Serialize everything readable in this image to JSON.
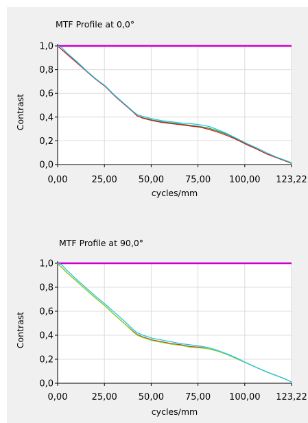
{
  "chart_data": [
    {
      "type": "line",
      "title": "MTF Profile at 0,0°",
      "xlabel": "cycles/mm",
      "ylabel": "Contrast",
      "xlim": [
        0,
        123.22
      ],
      "ylim": [
        0,
        1.0
      ],
      "x_ticks": [
        "0,00",
        "25,00",
        "50,00",
        "75,00",
        "100,00",
        "123,22"
      ],
      "y_ticks": [
        "0,0",
        "0,2",
        "0,4",
        "0,6",
        "0,8",
        "1,0"
      ],
      "grid": true,
      "legend": "none",
      "series": [
        {
          "color": "#cc00cc",
          "points": [
            [
              0,
              1.0
            ],
            [
              123.22,
              1.0
            ]
          ]
        },
        {
          "color": "#1a9a3a",
          "points": [
            [
              0,
              1.0
            ],
            [
              5,
              0.93
            ],
            [
              10,
              0.86
            ],
            [
              15,
              0.79
            ],
            [
              20,
              0.72
            ],
            [
              25,
              0.66
            ],
            [
              30,
              0.58
            ],
            [
              35,
              0.51
            ],
            [
              40,
              0.44
            ],
            [
              42,
              0.41
            ],
            [
              45,
              0.395
            ],
            [
              50,
              0.375
            ],
            [
              55,
              0.36
            ],
            [
              60,
              0.35
            ],
            [
              65,
              0.34
            ],
            [
              70,
              0.33
            ],
            [
              75,
              0.32
            ],
            [
              80,
              0.305
            ],
            [
              85,
              0.28
            ],
            [
              90,
              0.25
            ],
            [
              95,
              0.21
            ],
            [
              100,
              0.17
            ],
            [
              105,
              0.13
            ],
            [
              110,
              0.09
            ],
            [
              115,
              0.06
            ],
            [
              120,
              0.03
            ],
            [
              123.22,
              0.01
            ]
          ]
        },
        {
          "color": "#d81b1b",
          "points": [
            [
              0,
              1.0
            ],
            [
              5,
              0.93
            ],
            [
              10,
              0.86
            ],
            [
              15,
              0.79
            ],
            [
              20,
              0.72
            ],
            [
              25,
              0.66
            ],
            [
              30,
              0.58
            ],
            [
              35,
              0.51
            ],
            [
              40,
              0.44
            ],
            [
              42,
              0.41
            ],
            [
              45,
              0.39
            ],
            [
              50,
              0.37
            ],
            [
              55,
              0.355
            ],
            [
              60,
              0.345
            ],
            [
              65,
              0.335
            ],
            [
              70,
              0.325
            ],
            [
              75,
              0.315
            ],
            [
              80,
              0.295
            ],
            [
              85,
              0.27
            ],
            [
              90,
              0.24
            ],
            [
              95,
              0.205
            ],
            [
              100,
              0.165
            ],
            [
              105,
              0.13
            ],
            [
              110,
              0.09
            ],
            [
              115,
              0.06
            ],
            [
              120,
              0.03
            ],
            [
              123.22,
              0.01
            ]
          ]
        },
        {
          "color": "#1ec8e6",
          "points": [
            [
              0,
              1.0
            ],
            [
              2,
              0.99
            ],
            [
              5,
              0.94
            ],
            [
              10,
              0.87
            ],
            [
              15,
              0.795
            ],
            [
              20,
              0.725
            ],
            [
              25,
              0.665
            ],
            [
              30,
              0.585
            ],
            [
              35,
              0.515
            ],
            [
              40,
              0.445
            ],
            [
              42,
              0.42
            ],
            [
              45,
              0.405
            ],
            [
              50,
              0.385
            ],
            [
              55,
              0.37
            ],
            [
              60,
              0.36
            ],
            [
              65,
              0.35
            ],
            [
              70,
              0.345
            ],
            [
              75,
              0.335
            ],
            [
              80,
              0.32
            ],
            [
              85,
              0.29
            ],
            [
              90,
              0.255
            ],
            [
              95,
              0.215
            ],
            [
              100,
              0.175
            ],
            [
              105,
              0.14
            ],
            [
              110,
              0.1
            ],
            [
              115,
              0.065
            ],
            [
              120,
              0.035
            ],
            [
              123.22,
              0.015
            ]
          ]
        }
      ]
    },
    {
      "type": "line",
      "title": "MTF Profile at 90,0°",
      "xlabel": "cycles/mm",
      "ylabel": "Contrast",
      "xlim": [
        0,
        123.22
      ],
      "ylim": [
        0,
        1.0
      ],
      "x_ticks": [
        "0,00",
        "25,00",
        "50,00",
        "75,00",
        "100,00",
        "123,22"
      ],
      "y_ticks": [
        "0,0",
        "0,2",
        "0,4",
        "0,6",
        "0,8",
        "1,0"
      ],
      "grid": true,
      "legend": "none",
      "series": [
        {
          "color": "#cc00cc",
          "points": [
            [
              0,
              1.0
            ],
            [
              123.22,
              1.0
            ]
          ]
        },
        {
          "color": "#d81b1b",
          "points": [
            [
              0,
              1.0
            ],
            [
              5,
              0.92
            ],
            [
              10,
              0.85
            ],
            [
              15,
              0.78
            ],
            [
              20,
              0.71
            ],
            [
              25,
              0.645
            ],
            [
              30,
              0.57
            ],
            [
              35,
              0.5
            ],
            [
              40,
              0.43
            ],
            [
              42,
              0.405
            ],
            [
              45,
              0.385
            ],
            [
              50,
              0.36
            ],
            [
              55,
              0.345
            ],
            [
              60,
              0.33
            ],
            [
              65,
              0.32
            ],
            [
              70,
              0.305
            ],
            [
              75,
              0.3
            ],
            [
              80,
              0.285
            ],
            [
              85,
              0.265
            ],
            [
              90,
              0.235
            ],
            [
              95,
              0.2
            ],
            [
              100,
              0.165
            ],
            [
              105,
              0.13
            ],
            [
              110,
              0.095
            ],
            [
              115,
              0.065
            ],
            [
              120,
              0.035
            ],
            [
              123.22,
              0.01
            ]
          ]
        },
        {
          "color": "#7ddc1f",
          "points": [
            [
              0,
              1.0
            ],
            [
              5,
              0.92
            ],
            [
              10,
              0.85
            ],
            [
              15,
              0.78
            ],
            [
              20,
              0.71
            ],
            [
              25,
              0.645
            ],
            [
              30,
              0.57
            ],
            [
              35,
              0.5
            ],
            [
              40,
              0.425
            ],
            [
              42,
              0.4
            ],
            [
              45,
              0.38
            ],
            [
              50,
              0.355
            ],
            [
              55,
              0.34
            ],
            [
              60,
              0.325
            ],
            [
              65,
              0.315
            ],
            [
              70,
              0.3
            ],
            [
              75,
              0.295
            ],
            [
              80,
              0.285
            ],
            [
              85,
              0.265
            ],
            [
              90,
              0.235
            ],
            [
              95,
              0.2
            ],
            [
              100,
              0.165
            ],
            [
              105,
              0.13
            ],
            [
              110,
              0.095
            ],
            [
              115,
              0.065
            ],
            [
              120,
              0.035
            ],
            [
              123.22,
              0.01
            ]
          ]
        },
        {
          "color": "#1ec8e6",
          "points": [
            [
              0,
              1.0
            ],
            [
              2,
              0.99
            ],
            [
              5,
              0.94
            ],
            [
              10,
              0.865
            ],
            [
              15,
              0.795
            ],
            [
              20,
              0.725
            ],
            [
              25,
              0.66
            ],
            [
              30,
              0.59
            ],
            [
              35,
              0.52
            ],
            [
              40,
              0.445
            ],
            [
              42,
              0.42
            ],
            [
              45,
              0.4
            ],
            [
              50,
              0.375
            ],
            [
              55,
              0.36
            ],
            [
              60,
              0.345
            ],
            [
              65,
              0.33
            ],
            [
              70,
              0.32
            ],
            [
              75,
              0.31
            ],
            [
              80,
              0.295
            ],
            [
              85,
              0.27
            ],
            [
              90,
              0.24
            ],
            [
              95,
              0.205
            ],
            [
              100,
              0.165
            ],
            [
              105,
              0.13
            ],
            [
              110,
              0.095
            ],
            [
              115,
              0.065
            ],
            [
              120,
              0.035
            ],
            [
              123.22,
              0.01
            ]
          ]
        }
      ]
    }
  ]
}
